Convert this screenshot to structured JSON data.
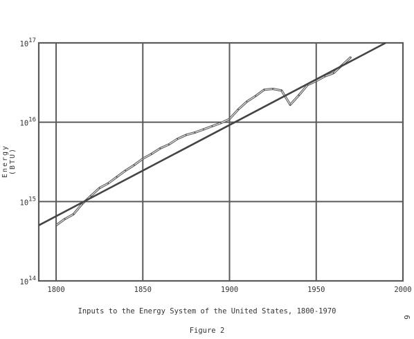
{
  "chart_data": {
    "type": "line",
    "title": "Inputs to the Energy System of the United States, 1800-1970",
    "subtitle": "Figure 2",
    "ylabel": "Energy (BTU)",
    "xlabel": "",
    "xlim": [
      1790,
      2000
    ],
    "ylim_log10": [
      14,
      17
    ],
    "y_scale": "log",
    "grid": true,
    "x_ticks": [
      "1800",
      "1850",
      "1900",
      "1950",
      "2000"
    ],
    "y_ticks": [
      {
        "base": "10",
        "exp": "14",
        "value_log10": 14
      },
      {
        "base": "10",
        "exp": "15",
        "value_log10": 15
      },
      {
        "base": "10",
        "exp": "16",
        "value_log10": 16
      },
      {
        "base": "10",
        "exp": "17",
        "value_log10": 17
      }
    ],
    "series": [
      {
        "kind": "observed",
        "x": [
          1800,
          1805,
          1810,
          1815,
          1820,
          1825,
          1830,
          1835,
          1840,
          1845,
          1850,
          1855,
          1860,
          1865,
          1870,
          1875,
          1880,
          1885,
          1890,
          1895,
          1900,
          1905,
          1910,
          1915,
          1920,
          1925,
          1930,
          1935,
          1940,
          1945,
          1950,
          1955,
          1960,
          1965,
          1970
        ],
        "y_log10": [
          14.7,
          14.78,
          14.84,
          14.97,
          15.07,
          15.17,
          15.23,
          15.31,
          15.39,
          15.46,
          15.54,
          15.6,
          15.67,
          15.72,
          15.79,
          15.84,
          15.87,
          15.91,
          15.95,
          15.99,
          16.04,
          16.16,
          16.26,
          16.33,
          16.41,
          16.42,
          16.4,
          16.22,
          16.34,
          16.47,
          16.52,
          16.58,
          16.62,
          16.72,
          16.82
        ]
      },
      {
        "kind": "trend",
        "x": [
          1790,
          1990
        ],
        "y_log10": [
          14.7,
          17.0
        ]
      }
    ],
    "page_number": "6"
  }
}
